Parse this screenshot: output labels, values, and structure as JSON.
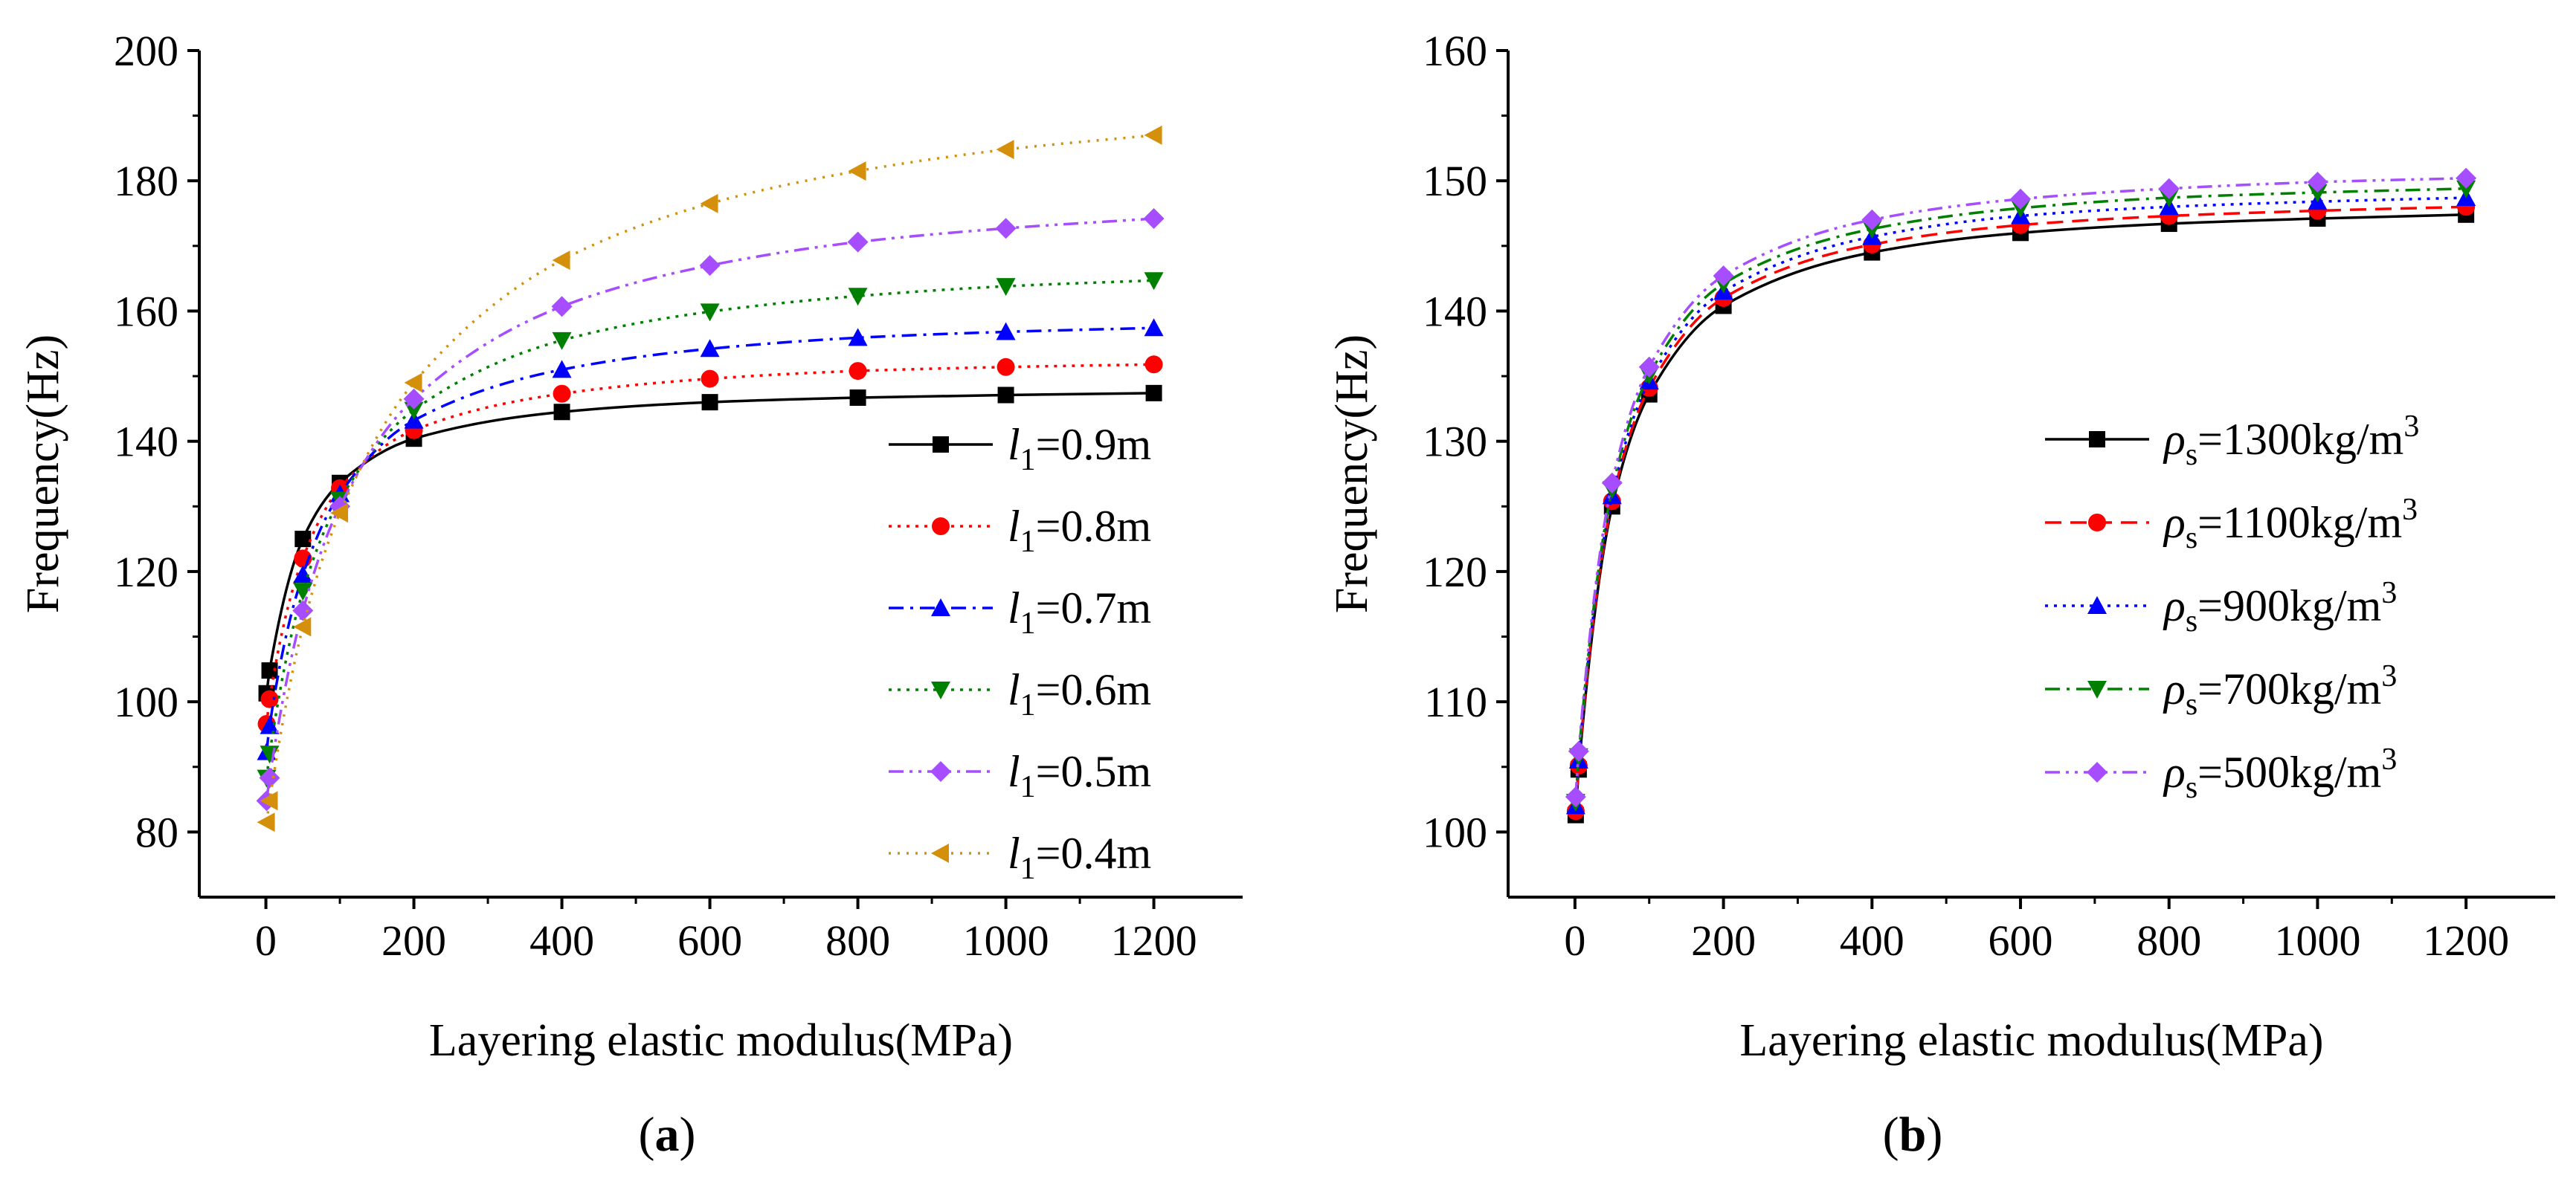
{
  "chart_data": [
    {
      "type": "line",
      "panel_label": "a",
      "xlabel": "Layering elastic modulus(MPa)",
      "ylabel": "Frequency(Hz)",
      "xlim": [
        -90,
        1320
      ],
      "ylim": [
        70,
        200
      ],
      "xticks": [
        0,
        200,
        400,
        600,
        800,
        1000,
        1200
      ],
      "yticks": [
        80,
        100,
        120,
        140,
        160,
        180,
        200
      ],
      "legend_position": "right",
      "x": [
        1,
        5,
        50,
        100,
        200,
        400,
        600,
        800,
        1000,
        1200
      ],
      "series": [
        {
          "name": "l1=0.9m",
          "var": "l",
          "sub": "1",
          "val": "=0.9m",
          "color": "#000000",
          "marker": "square",
          "dash": "solid",
          "values": [
            101.3,
            104.8,
            125.0,
            133.6,
            140.4,
            144.5,
            146.0,
            146.7,
            147.1,
            147.4
          ]
        },
        {
          "name": "l1=0.8m",
          "var": "l",
          "sub": "1",
          "val": "=0.8m",
          "color": "#ff0000",
          "marker": "circle",
          "dash": "dot",
          "values": [
            96.6,
            100.4,
            122.0,
            132.8,
            141.7,
            147.3,
            149.6,
            150.8,
            151.4,
            151.8
          ]
        },
        {
          "name": "l1=0.7m",
          "var": "l",
          "sub": "1",
          "val": "=0.7m",
          "color": "#0000ff",
          "marker": "triangle-up",
          "dash": "dashdot",
          "values": [
            92.3,
            96.3,
            119.5,
            131.9,
            143.2,
            151.0,
            154.2,
            155.9,
            156.8,
            157.4
          ]
        },
        {
          "name": "l1=0.6m",
          "var": "l",
          "sub": "1",
          "val": "=0.6m",
          "color": "#008000",
          "marker": "triangle-down",
          "dash": "dot",
          "values": [
            88.3,
            92.0,
            117.0,
            131.0,
            144.8,
            155.5,
            159.9,
            162.3,
            163.8,
            164.7
          ]
        },
        {
          "name": "l1=0.5m",
          "var": "l",
          "sub": "1",
          "val": "=0.5m",
          "color": "#a64dff",
          "marker": "diamond",
          "dash": "dashdotdot",
          "values": [
            84.8,
            88.3,
            114.0,
            130.0,
            146.5,
            160.7,
            167.0,
            170.6,
            172.7,
            174.2
          ]
        },
        {
          "name": "l1=0.4m",
          "var": "l",
          "sub": "1",
          "val": "=0.4m",
          "color": "#d4900a",
          "marker": "triangle-left",
          "dash": "shortdot",
          "values": [
            81.5,
            84.8,
            111.5,
            129.0,
            149.0,
            167.8,
            176.5,
            181.5,
            184.8,
            187.0
          ]
        }
      ]
    },
    {
      "type": "line",
      "panel_label": "b",
      "xlabel": "Layering elastic modulus(MPa)",
      "ylabel": "Frequency(Hz)",
      "xlim": [
        -90,
        1320
      ],
      "ylim": [
        95,
        160
      ],
      "xticks": [
        0,
        200,
        400,
        600,
        800,
        1000,
        1200
      ],
      "yticks": [
        100,
        110,
        120,
        130,
        140,
        150,
        160
      ],
      "legend_position": "right",
      "x": [
        1,
        5,
        50,
        100,
        200,
        400,
        600,
        800,
        1000,
        1200
      ],
      "series": [
        {
          "name": "ρs=1300kg/m3",
          "var": "ρ",
          "sub": "s",
          "val": "=1300kg/m",
          "sup": "3",
          "color": "#000000",
          "marker": "square",
          "dash": "solid",
          "values": [
            101.3,
            104.8,
            125.0,
            133.6,
            140.4,
            144.5,
            146.0,
            146.7,
            147.1,
            147.4
          ]
        },
        {
          "name": "ρs=1100kg/m3",
          "var": "ρ",
          "sub": "s",
          "val": "=1100kg/m",
          "sup": "3",
          "color": "#ff0000",
          "marker": "circle",
          "dash": "dash",
          "values": [
            101.6,
            105.1,
            125.4,
            134.1,
            141.0,
            145.1,
            146.6,
            147.3,
            147.7,
            148.0
          ]
        },
        {
          "name": "ρs=900kg/m3",
          "var": "ρ",
          "sub": "s",
          "val": "=900kg/m",
          "sup": "3",
          "color": "#0000ff",
          "marker": "triangle-up",
          "dash": "dot",
          "values": [
            102.0,
            105.5,
            125.8,
            134.6,
            141.5,
            145.7,
            147.3,
            148.0,
            148.4,
            148.7
          ]
        },
        {
          "name": "ρs=700kg/m3",
          "var": "ρ",
          "sub": "s",
          "val": "=700kg/m",
          "sup": "3",
          "color": "#008000",
          "marker": "triangle-down",
          "dash": "dashdot",
          "values": [
            102.3,
            105.8,
            126.3,
            135.1,
            142.1,
            146.3,
            147.9,
            148.7,
            149.1,
            149.4
          ]
        },
        {
          "name": "ρs=500kg/m3",
          "var": "ρ",
          "sub": "s",
          "val": "=500kg/m",
          "sup": "3",
          "color": "#a64dff",
          "marker": "diamond",
          "dash": "dashdotdot",
          "values": [
            102.7,
            106.2,
            126.8,
            135.7,
            142.7,
            147.0,
            148.6,
            149.4,
            149.9,
            150.2
          ]
        }
      ]
    }
  ]
}
